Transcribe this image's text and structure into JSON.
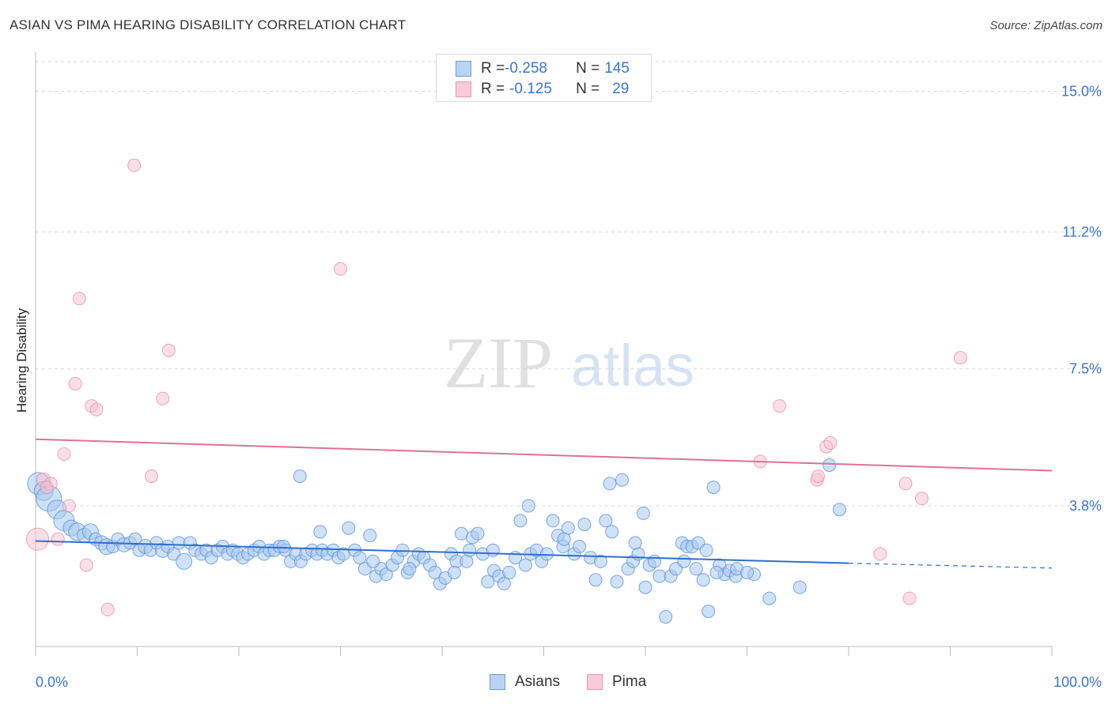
{
  "title": "ASIAN VS PIMA HEARING DISABILITY CORRELATION CHART",
  "source": "Source: ZipAtlas.com",
  "watermark": {
    "zip": "ZIP",
    "atlas": "atlas"
  },
  "colors": {
    "asian_fill": "#a8c8f0",
    "asian_stroke": "#5b93d8",
    "asian_line": "#2f6fd0",
    "pima_fill": "#f7bfd0",
    "pima_stroke": "#e98aa8",
    "pima_line": "#e07098",
    "tick_label": "#3b75d0",
    "grid": "#d8d8d8"
  },
  "legend": {
    "rows": [
      {
        "r_label": "R = ",
        "r_value": "-0.258",
        "n_label": "N = ",
        "n_value": "145"
      },
      {
        "r_label": "R = ",
        "r_value": "-0.125",
        "n_label": "N = ",
        "n_value": "29"
      }
    ],
    "bottom": [
      "Asians",
      "Pima"
    ]
  },
  "chart_data": {
    "type": "scatter",
    "title": "ASIAN VS PIMA HEARING DISABILITY CORRELATION CHART",
    "xlabel": "",
    "ylabel": "Hearing Disability",
    "xlim": [
      0,
      100
    ],
    "ylim": [
      0,
      15.8
    ],
    "x_tick_labels": [
      "0.0%",
      "100.0%"
    ],
    "y_ticks": [
      3.8,
      7.5,
      11.2,
      15.0
    ],
    "y_tick_labels": [
      "3.8%",
      "7.5%",
      "11.2%",
      "15.0%"
    ],
    "grid": true,
    "legend_position": "top-center",
    "series": [
      {
        "name": "Asians",
        "r": -0.258,
        "n": 145,
        "trend": {
          "x": [
            0,
            80
          ],
          "y": [
            2.85,
            2.25
          ],
          "dashed_to": [
            100,
            2.12
          ]
        },
        "points": [
          [
            0.3,
            4.4,
            14
          ],
          [
            0.8,
            4.2,
            12
          ],
          [
            1.3,
            4.0,
            16
          ],
          [
            2.1,
            3.7,
            12
          ],
          [
            2.8,
            3.4,
            13
          ],
          [
            3.5,
            3.2,
            10
          ],
          [
            4.1,
            3.1,
            11
          ],
          [
            4.8,
            3.0,
            9
          ],
          [
            5.4,
            3.1,
            10
          ],
          [
            5.9,
            2.9,
            8
          ],
          [
            6.5,
            2.8,
            9
          ],
          [
            7.0,
            2.7,
            10
          ],
          [
            7.6,
            2.7,
            8
          ],
          [
            8.1,
            2.9,
            8
          ],
          [
            8.7,
            2.75,
            9
          ],
          [
            9.3,
            2.8,
            8
          ],
          [
            9.8,
            2.9,
            8
          ],
          [
            10.2,
            2.6,
            8
          ],
          [
            10.8,
            2.7,
            9
          ],
          [
            11.3,
            2.6,
            8
          ],
          [
            11.9,
            2.8,
            8
          ],
          [
            12.5,
            2.6,
            9
          ],
          [
            13.0,
            2.7,
            8
          ],
          [
            13.6,
            2.5,
            8
          ],
          [
            14.1,
            2.8,
            8
          ],
          [
            14.6,
            2.3,
            10
          ],
          [
            15.2,
            2.8,
            8
          ],
          [
            15.7,
            2.6,
            8
          ],
          [
            16.3,
            2.5,
            8
          ],
          [
            16.8,
            2.6,
            8
          ],
          [
            17.3,
            2.4,
            8
          ],
          [
            17.9,
            2.6,
            8
          ],
          [
            18.4,
            2.7,
            8
          ],
          [
            18.9,
            2.5,
            8
          ],
          [
            19.4,
            2.6,
            8
          ],
          [
            19.9,
            2.5,
            8
          ],
          [
            20.4,
            2.4,
            8
          ],
          [
            20.9,
            2.5,
            8
          ],
          [
            21.5,
            2.6,
            8
          ],
          [
            22.0,
            2.7,
            8
          ],
          [
            22.5,
            2.5,
            8
          ],
          [
            23.0,
            2.6,
            8
          ],
          [
            23.5,
            2.6,
            8
          ],
          [
            24.0,
            2.7,
            8
          ],
          [
            24.6,
            2.6,
            8
          ],
          [
            25.1,
            2.3,
            8
          ],
          [
            25.6,
            2.5,
            8
          ],
          [
            26.1,
            2.3,
            8
          ],
          [
            26.6,
            2.5,
            8
          ],
          [
            27.2,
            2.6,
            8
          ],
          [
            27.7,
            2.5,
            8
          ],
          [
            28.2,
            2.6,
            8
          ],
          [
            28.7,
            2.5,
            8
          ],
          [
            29.3,
            2.6,
            8
          ],
          [
            29.8,
            2.4,
            8
          ],
          [
            30.3,
            2.5,
            8
          ],
          [
            30.8,
            3.2,
            8
          ],
          [
            31.4,
            2.6,
            8
          ],
          [
            31.9,
            2.4,
            8
          ],
          [
            32.4,
            2.1,
            8
          ],
          [
            32.9,
            3.0,
            8
          ],
          [
            33.5,
            1.9,
            8
          ],
          [
            34.0,
            2.1,
            8
          ],
          [
            34.5,
            1.95,
            8
          ],
          [
            35.1,
            2.2,
            8
          ],
          [
            35.6,
            2.4,
            8
          ],
          [
            36.1,
            2.6,
            8
          ],
          [
            36.6,
            2.0,
            8
          ],
          [
            37.2,
            2.3,
            8
          ],
          [
            37.7,
            2.5,
            8
          ],
          [
            38.2,
            2.4,
            8
          ],
          [
            38.8,
            2.2,
            8
          ],
          [
            39.3,
            2.0,
            8
          ],
          [
            39.8,
            1.7,
            8
          ],
          [
            40.3,
            1.85,
            8
          ],
          [
            40.9,
            2.5,
            8
          ],
          [
            41.4,
            2.3,
            8
          ],
          [
            41.9,
            3.05,
            8
          ],
          [
            42.4,
            2.3,
            8
          ],
          [
            43.0,
            2.95,
            8
          ],
          [
            43.5,
            3.05,
            8
          ],
          [
            44.0,
            2.5,
            8
          ],
          [
            44.5,
            1.75,
            8
          ],
          [
            45.1,
            2.05,
            8
          ],
          [
            45.6,
            1.9,
            8
          ],
          [
            46.1,
            1.7,
            8
          ],
          [
            46.6,
            2.0,
            8
          ],
          [
            47.2,
            2.4,
            8
          ],
          [
            47.7,
            3.4,
            8
          ],
          [
            48.2,
            2.2,
            8
          ],
          [
            48.7,
            2.5,
            8
          ],
          [
            49.3,
            2.6,
            8
          ],
          [
            49.8,
            2.3,
            8
          ],
          [
            50.3,
            2.5,
            8
          ],
          [
            50.9,
            3.4,
            8
          ],
          [
            51.4,
            3.0,
            8
          ],
          [
            51.9,
            2.7,
            8
          ],
          [
            52.4,
            3.2,
            8
          ],
          [
            53.0,
            2.5,
            8
          ],
          [
            53.5,
            2.7,
            8
          ],
          [
            54.0,
            3.3,
            8
          ],
          [
            54.6,
            2.4,
            8
          ],
          [
            55.1,
            1.8,
            8
          ],
          [
            55.6,
            2.3,
            8
          ],
          [
            56.1,
            3.4,
            8
          ],
          [
            56.7,
            3.1,
            8
          ],
          [
            57.2,
            1.75,
            8
          ],
          [
            57.7,
            4.5,
            8
          ],
          [
            58.3,
            2.1,
            8
          ],
          [
            58.8,
            2.3,
            8
          ],
          [
            59.3,
            2.5,
            8
          ],
          [
            59.8,
            3.6,
            8
          ],
          [
            60.4,
            2.2,
            8
          ],
          [
            60.9,
            2.3,
            8
          ],
          [
            61.4,
            1.9,
            8
          ],
          [
            62.0,
            0.8,
            8
          ],
          [
            62.5,
            1.9,
            8
          ],
          [
            63.0,
            2.1,
            8
          ],
          [
            63.6,
            2.8,
            8
          ],
          [
            64.1,
            2.7,
            8
          ],
          [
            64.6,
            2.7,
            8
          ],
          [
            65.2,
            2.8,
            8
          ],
          [
            65.7,
            1.8,
            8
          ],
          [
            66.2,
            0.95,
            8
          ],
          [
            66.7,
            4.3,
            8
          ],
          [
            67.3,
            2.2,
            8
          ],
          [
            67.8,
            1.95,
            8
          ],
          [
            68.3,
            2.05,
            8
          ],
          [
            68.9,
            1.9,
            8
          ],
          [
            70.7,
            1.95,
            8
          ],
          [
            72.2,
            1.3,
            8
          ],
          [
            75.2,
            1.6,
            8
          ],
          [
            78.1,
            4.9,
            8
          ],
          [
            79.1,
            3.7,
            8
          ],
          [
            56.5,
            4.4,
            8
          ],
          [
            26.0,
            4.6,
            8
          ],
          [
            59.0,
            2.8,
            8
          ],
          [
            48.5,
            3.8,
            8
          ],
          [
            69.0,
            2.1,
            8
          ],
          [
            45.0,
            2.6,
            8
          ],
          [
            70.0,
            2.0,
            8
          ],
          [
            60.0,
            1.6,
            8
          ],
          [
            52.0,
            2.9,
            8
          ],
          [
            63.8,
            2.3,
            8
          ],
          [
            36.8,
            2.1,
            8
          ],
          [
            24.4,
            2.7,
            8
          ],
          [
            33.2,
            2.3,
            8
          ],
          [
            28.0,
            3.1,
            8
          ],
          [
            41.2,
            2.0,
            8
          ],
          [
            42.7,
            2.6,
            8
          ],
          [
            65.0,
            2.1,
            8
          ],
          [
            66.0,
            2.6,
            8
          ],
          [
            67.0,
            2.0,
            8
          ]
        ]
      },
      {
        "name": "Pima",
        "r": -0.125,
        "n": 29,
        "trend": {
          "x": [
            0,
            100
          ],
          "y": [
            5.6,
            4.75
          ]
        },
        "points": [
          [
            0.2,
            2.9,
            14
          ],
          [
            0.8,
            4.5,
            9
          ],
          [
            1.5,
            4.4,
            8
          ],
          [
            2.2,
            2.9,
            8
          ],
          [
            2.8,
            5.2,
            8
          ],
          [
            3.3,
            3.8,
            8
          ],
          [
            3.9,
            7.1,
            8
          ],
          [
            4.3,
            9.4,
            8
          ],
          [
            5.0,
            2.2,
            8
          ],
          [
            5.5,
            6.5,
            8
          ],
          [
            6.0,
            6.4,
            8
          ],
          [
            7.1,
            1.0,
            8
          ],
          [
            9.7,
            13.0,
            8
          ],
          [
            11.4,
            4.6,
            8
          ],
          [
            12.5,
            6.7,
            8
          ],
          [
            13.1,
            8.0,
            8
          ],
          [
            30.0,
            10.2,
            8
          ],
          [
            71.3,
            5.0,
            8
          ],
          [
            73.2,
            6.5,
            8
          ],
          [
            76.9,
            4.5,
            8
          ],
          [
            77.0,
            4.6,
            8
          ],
          [
            77.8,
            5.4,
            8
          ],
          [
            78.2,
            5.5,
            8
          ],
          [
            83.1,
            2.5,
            8
          ],
          [
            85.6,
            4.4,
            8
          ],
          [
            86.0,
            1.3,
            8
          ],
          [
            87.2,
            4.0,
            8
          ],
          [
            91.0,
            7.8,
            8
          ],
          [
            1.1,
            4.3,
            8
          ]
        ]
      }
    ]
  }
}
